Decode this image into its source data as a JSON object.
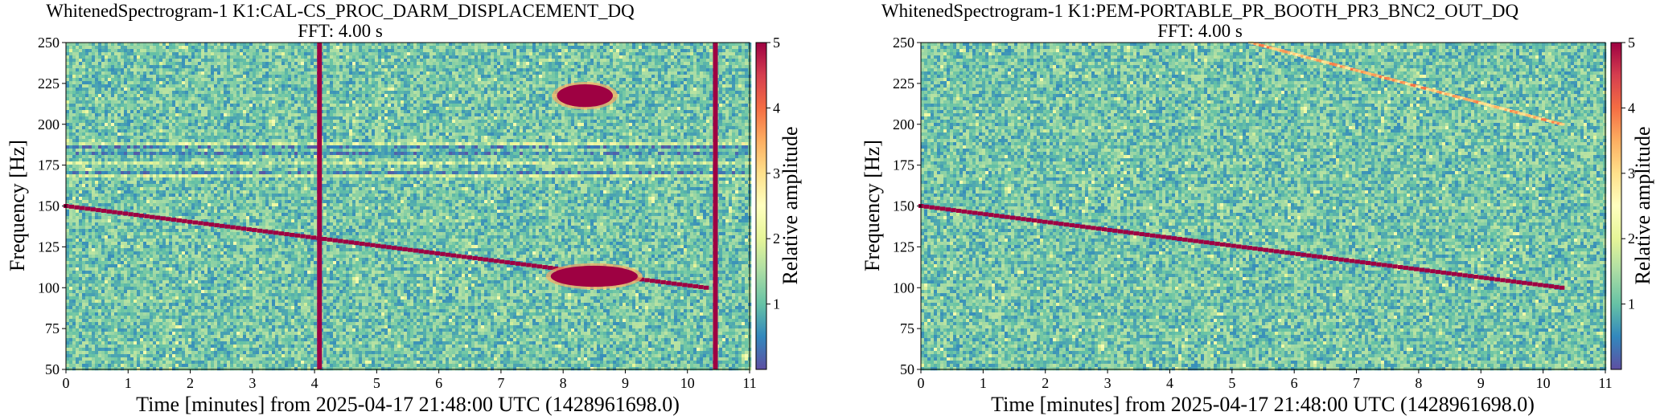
{
  "chart_data": [
    {
      "type": "heatmap",
      "title": "WhitenedSpectrogram-1 K1:CAL-CS_PROC_DARM_DISPLACEMENT_DQ",
      "subtitle": "FFT: 4.00 s",
      "xlabel": "Time [minutes] from 2025-04-17 21:48:00 UTC (1428961698.0)",
      "ylabel": "Frequency [Hz]",
      "xlim": [
        0,
        11
      ],
      "ylim": [
        50,
        250
      ],
      "xticks": [
        "0",
        "1",
        "2",
        "3",
        "4",
        "5",
        "6",
        "7",
        "8",
        "9",
        "10",
        "11"
      ],
      "yticks": [
        "50",
        "75",
        "100",
        "125",
        "150",
        "175",
        "200",
        "225",
        "250"
      ],
      "colorbar": {
        "label": "Relative amplitude",
        "range": [
          0,
          5
        ],
        "ticks": [
          "1",
          "2",
          "3",
          "4",
          "5"
        ],
        "colormap": "Spectral_r"
      },
      "features": [
        {
          "kind": "chirp",
          "t_start": 0,
          "t_end": 10.3,
          "f_start": 150,
          "f_end": 100
        },
        {
          "kind": "blob",
          "t_start": 7.8,
          "t_end": 9.2,
          "f_start": 112,
          "f_end": 102
        },
        {
          "kind": "blob",
          "t_start": 7.9,
          "t_end": 8.8,
          "f_start": 223,
          "f_end": 212
        },
        {
          "kind": "glitch_line",
          "t": 4.08
        },
        {
          "kind": "glitch_line",
          "t": 10.45
        },
        {
          "kind": "horizontal_line",
          "f": 187
        },
        {
          "kind": "horizontal_line",
          "f": 182
        },
        {
          "kind": "horizontal_line",
          "f": 176
        },
        {
          "kind": "horizontal_line",
          "f": 170
        }
      ]
    },
    {
      "type": "heatmap",
      "title": "WhitenedSpectrogram-1 K1:PEM-PORTABLE_PR_BOOTH_PR3_BNC2_OUT_DQ",
      "subtitle": "FFT: 4.00 s",
      "xlabel": "Time [minutes] from 2025-04-17 21:48:00 UTC (1428961698.0)",
      "ylabel": "Frequency [Hz]",
      "xlim": [
        0,
        11
      ],
      "ylim": [
        50,
        250
      ],
      "xticks": [
        "0",
        "1",
        "2",
        "3",
        "4",
        "5",
        "6",
        "7",
        "8",
        "9",
        "10",
        "11"
      ],
      "yticks": [
        "50",
        "75",
        "100",
        "125",
        "150",
        "175",
        "200",
        "225",
        "250"
      ],
      "colorbar": {
        "label": "Relative amplitude",
        "range": [
          0,
          5
        ],
        "ticks": [
          "1",
          "2",
          "3",
          "4",
          "5"
        ],
        "colormap": "Spectral_r"
      },
      "features": [
        {
          "kind": "chirp",
          "t_start": 0,
          "t_end": 10.3,
          "f_start": 150,
          "f_end": 100
        },
        {
          "kind": "faint_chirp",
          "t_start": 5.3,
          "t_end": 10.3,
          "f_start": 250,
          "f_end": 200
        }
      ]
    }
  ]
}
